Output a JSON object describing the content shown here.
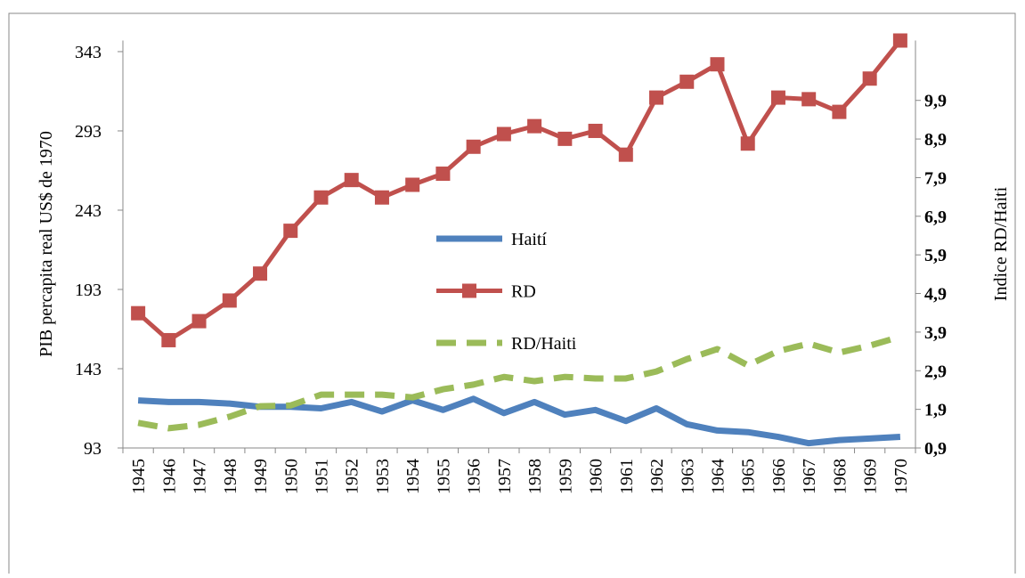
{
  "chart_data": {
    "type": "line",
    "y_label": "PIB percapita  real US$  de 1970",
    "y2_label": "Indice RD/Haiti",
    "categories": [
      "1945",
      "1946",
      "1947",
      "1948",
      "1949",
      "1950",
      "1951",
      "1952",
      "1953",
      "1954",
      "1955",
      "1956",
      "1957",
      "1958",
      "1959",
      "1960",
      "1961",
      "1962",
      "1963",
      "1964",
      "1965",
      "1966",
      "1967",
      "1968",
      "1969",
      "1970"
    ],
    "series": [
      {
        "name": "Haití",
        "color": "#4f81bd",
        "style": "solid",
        "values": [
          123,
          122,
          122,
          121,
          119,
          119,
          118,
          122,
          116,
          123,
          117,
          124,
          115,
          122,
          114,
          117,
          110,
          118,
          108,
          104,
          103,
          100,
          96,
          98,
          99,
          100
        ]
      },
      {
        "name": "RD",
        "color": "#c0504d",
        "style": "square-markers",
        "values": [
          178,
          161,
          173,
          186,
          203,
          230,
          251,
          262,
          251,
          259,
          266,
          283,
          291,
          296,
          288,
          293,
          278,
          314,
          324,
          335,
          285,
          314,
          313,
          305,
          326,
          350
        ]
      },
      {
        "name": "RD/Haiti",
        "color": "#9bbb59",
        "style": "dashed",
        "axis": "y2",
        "values": [
          1.55,
          1.41,
          1.5,
          1.71,
          1.98,
          2.0,
          2.28,
          2.28,
          2.28,
          2.21,
          2.42,
          2.54,
          2.74,
          2.63,
          2.74,
          2.7,
          2.7,
          2.88,
          3.2,
          3.46,
          3.04,
          3.41,
          3.6,
          3.37,
          3.55,
          3.78
        ]
      }
    ],
    "ylim": [
      93,
      350
    ],
    "yticks": [
      93,
      143,
      193,
      243,
      293,
      343
    ],
    "y2lim": [
      0.9,
      11.45
    ],
    "y2ticks": [
      {
        "value": 0.9,
        "label": "0,9"
      },
      {
        "value": 1.9,
        "label": "1,9"
      },
      {
        "value": 2.9,
        "label": "2,9"
      },
      {
        "value": 3.9,
        "label": "3,9"
      },
      {
        "value": 4.9,
        "label": "4,9"
      },
      {
        "value": 5.9,
        "label": "5,9"
      },
      {
        "value": 6.9,
        "label": "6,9"
      },
      {
        "value": 7.9,
        "label": "7,9"
      },
      {
        "value": 8.9,
        "label": "8,9"
      },
      {
        "value": 9.9,
        "label": "9,9"
      }
    ],
    "y2tick_color": "#00b050",
    "legend": "center"
  }
}
